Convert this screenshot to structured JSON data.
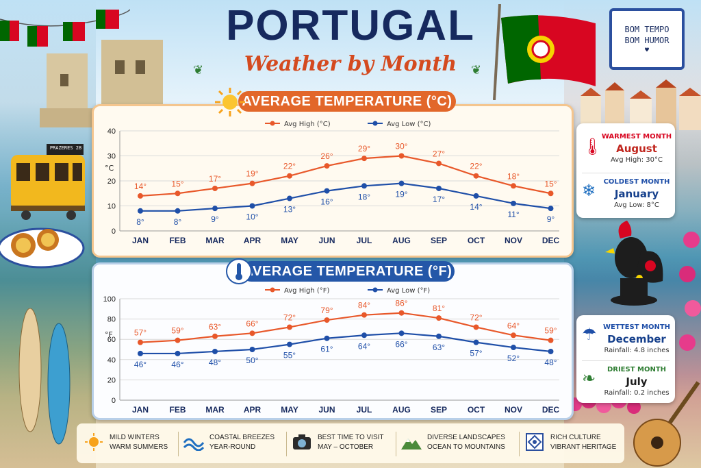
{
  "title": "PORTUGAL",
  "subtitle": "Weather by Month",
  "flag_colors": {
    "green": "#006600",
    "red": "#d80621",
    "yellow": "#f5d400"
  },
  "tram_sign": "PRAZERES 28",
  "tile": {
    "line1": "BOM TEMPO",
    "line2": "BOM HUMOR"
  },
  "charts_c_label": "AVERAGE TEMPERATURE (°C)",
  "charts_f_label": "AVERAGE TEMPERATURE (°F)",
  "side": {
    "warmest": {
      "label": "WARMEST MONTH",
      "value": "August",
      "detail": "Avg High: 30°C",
      "icon": "thermometer-icon"
    },
    "coldest": {
      "label": "COLDEST MONTH",
      "value": "January",
      "detail": "Avg Low: 8°C",
      "icon": "snowflake-icon"
    },
    "wettest": {
      "label": "WETTEST MONTH",
      "value": "December",
      "detail": "Rainfall: 4.8 inches",
      "icon": "umbrella-icon"
    },
    "driest": {
      "label": "DRIEST MONTH",
      "value": "July",
      "detail": "Rainfall: 0.2 inches",
      "icon": "leaf-icon"
    }
  },
  "footer": [
    {
      "line1": "MILD WINTERS",
      "line2": "WARM SUMMERS",
      "icon": "sun-icon"
    },
    {
      "line1": "COASTAL BREEZES",
      "line2": "YEAR-ROUND",
      "icon": "wave-icon"
    },
    {
      "line1": "BEST TIME TO VISIT",
      "line2": "MAY – OCTOBER",
      "icon": "camera-icon"
    },
    {
      "line1": "DIVERSE LANDSCAPES",
      "line2": "OCEAN TO MOUNTAINS",
      "icon": "mountain-icon"
    },
    {
      "line1": "RICH CULTURE",
      "line2": "VIBRANT HERITAGE",
      "icon": "azulejo-tile-icon"
    }
  ],
  "colors": {
    "high": "#e8582a",
    "low": "#1f4fa8",
    "grid": "#d9d9d9"
  },
  "chart_data": [
    {
      "type": "line",
      "title": "AVERAGE TEMPERATURE (°C)",
      "ylabel": "°C",
      "ylim": [
        0,
        40
      ],
      "yticks": [
        0,
        10,
        20,
        30,
        40
      ],
      "categories": [
        "JAN",
        "FEB",
        "MAR",
        "APR",
        "MAY",
        "JUN",
        "JUL",
        "AUG",
        "SEP",
        "OCT",
        "NOV",
        "DEC"
      ],
      "series": [
        {
          "name": "Avg High (°C)",
          "values": [
            14,
            15,
            17,
            19,
            22,
            26,
            29,
            30,
            27,
            22,
            18,
            15
          ],
          "labels": [
            "14°",
            "15°",
            "17°",
            "19°",
            "22°",
            "26°",
            "29°",
            "30°",
            "27°",
            "22°",
            "18°",
            "15°"
          ]
        },
        {
          "name": "Avg Low (°C)",
          "values": [
            8,
            8,
            9,
            10,
            13,
            16,
            18,
            19,
            17,
            14,
            11,
            9
          ],
          "labels": [
            "8°",
            "8°",
            "9°",
            "10°",
            "13°",
            "16°",
            "18°",
            "19°",
            "17°",
            "14°",
            "11°",
            "9°"
          ]
        }
      ],
      "grid": true,
      "legend": "top-center"
    },
    {
      "type": "line",
      "title": "AVERAGE TEMPERATURE (°F)",
      "ylabel": "°F",
      "ylim": [
        0,
        100
      ],
      "yticks": [
        0,
        20,
        40,
        60,
        80,
        100
      ],
      "categories": [
        "JAN",
        "FEB",
        "MAR",
        "APR",
        "MAY",
        "JUN",
        "JUL",
        "AUG",
        "SEP",
        "OCT",
        "NOV",
        "DEC"
      ],
      "series": [
        {
          "name": "Avg High (°F)",
          "values": [
            57,
            59,
            63,
            66,
            72,
            79,
            84,
            86,
            81,
            72,
            64,
            59
          ],
          "labels": [
            "57°",
            "59°",
            "63°",
            "66°",
            "72°",
            "79°",
            "84°",
            "86°",
            "81°",
            "72°",
            "64°",
            "59°"
          ]
        },
        {
          "name": "Avg Low (°F)",
          "values": [
            46,
            46,
            48,
            50,
            55,
            61,
            64,
            66,
            63,
            57,
            52,
            48
          ],
          "labels": [
            "46°",
            "46°",
            "48°",
            "50°",
            "55°",
            "61°",
            "64°",
            "66°",
            "63°",
            "57°",
            "52°",
            "48°"
          ]
        }
      ],
      "grid": true,
      "legend": "top-center"
    }
  ]
}
